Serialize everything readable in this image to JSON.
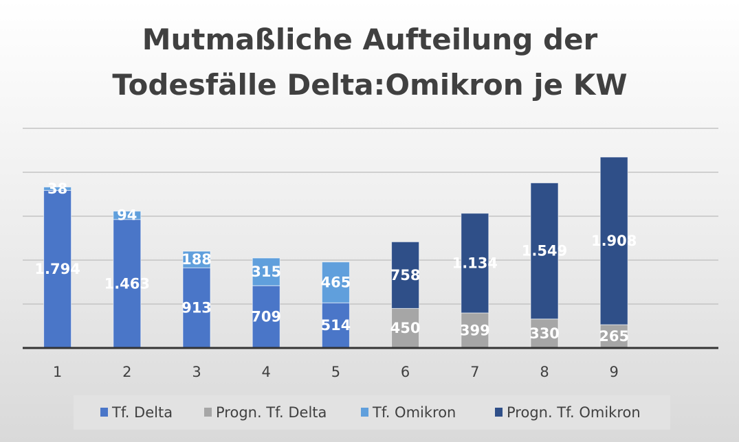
{
  "chart_data": {
    "type": "bar",
    "stacked": true,
    "title_lines": [
      "Mutmaßliche Aufteilung der",
      "Todesfälle Delta:Omikron je KW"
    ],
    "categories": [
      "1",
      "2",
      "3",
      "4",
      "5",
      "6",
      "7",
      "8",
      "9"
    ],
    "slots": 10,
    "ylim": [
      0,
      2500
    ],
    "gridlines": [
      500,
      1000,
      1500,
      2000,
      2500
    ],
    "grid": true,
    "y_axis_labels_visible": false,
    "legend_position": "bottom",
    "series": [
      {
        "name": "Tf. Delta",
        "color": "#4a76c8",
        "values": [
          1794,
          1463,
          913,
          709,
          514,
          null,
          null,
          null,
          null
        ]
      },
      {
        "name": "Progn. Tf. Delta",
        "color": "#a6a6a6",
        "values": [
          null,
          null,
          null,
          null,
          null,
          450,
          399,
          330,
          265
        ]
      },
      {
        "name": "Tf. Omikron",
        "color": "#609fdc",
        "values": [
          38,
          94,
          188,
          315,
          465,
          null,
          null,
          null,
          null
        ]
      },
      {
        "name": "Progn. Tf. Omikron",
        "color": "#2f4f88",
        "values": [
          null,
          null,
          null,
          null,
          null,
          758,
          1134,
          1549,
          1908
        ]
      }
    ]
  }
}
